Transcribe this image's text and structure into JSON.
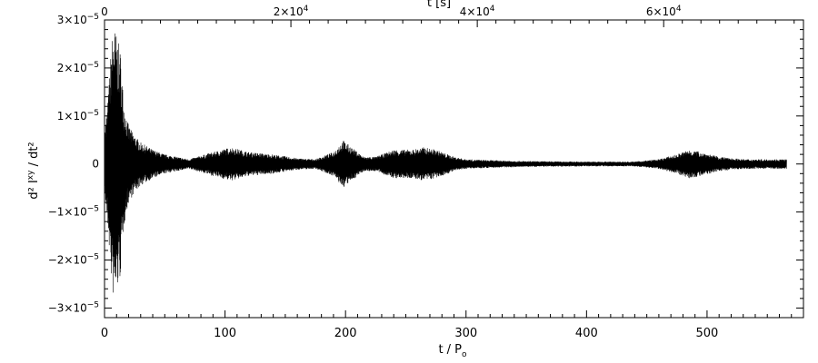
{
  "chart_data": {
    "type": "line",
    "series": [
      {
        "envelope": [
          [
            0,
            6e-06
          ],
          [
            3,
            1.4e-05
          ],
          [
            6,
            2.6e-05
          ],
          [
            8,
            2.9e-05
          ],
          [
            10,
            2.7e-05
          ],
          [
            13,
            2.4e-05
          ],
          [
            16,
            1.3e-05
          ],
          [
            20,
            8e-06
          ],
          [
            25,
            6e-06
          ],
          [
            30,
            4.5e-06
          ],
          [
            40,
            3e-06
          ],
          [
            50,
            2e-06
          ],
          [
            60,
            1.5e-06
          ],
          [
            70,
            1e-06
          ],
          [
            90,
            2.5e-06
          ],
          [
            105,
            3.5e-06
          ],
          [
            120,
            2.5e-06
          ],
          [
            140,
            2e-06
          ],
          [
            160,
            1.2e-06
          ],
          [
            175,
            1e-06
          ],
          [
            190,
            2.5e-06
          ],
          [
            198,
            5e-06
          ],
          [
            205,
            3.5e-06
          ],
          [
            215,
            1.5e-06
          ],
          [
            225,
            1.5e-06
          ],
          [
            240,
            3e-06
          ],
          [
            255,
            3e-06
          ],
          [
            265,
            3.5e-06
          ],
          [
            275,
            3e-06
          ],
          [
            290,
            1.5e-06
          ],
          [
            300,
            1e-06
          ],
          [
            320,
            8e-07
          ],
          [
            350,
            6e-07
          ],
          [
            400,
            5e-07
          ],
          [
            440,
            5e-07
          ],
          [
            460,
            1e-06
          ],
          [
            475,
            2e-06
          ],
          [
            485,
            3e-06
          ],
          [
            495,
            2.5e-06
          ],
          [
            510,
            1.5e-06
          ],
          [
            530,
            1e-06
          ],
          [
            550,
            1e-06
          ],
          [
            566,
            1e-06
          ]
        ]
      }
    ],
    "xlabel": "t / P",
    "xlabel_sub": "o",
    "ylabel": "d² I",
    "ylabel_sup": "xy",
    "ylabel_rest": " / dt²",
    "top_xlabel": "t [s]",
    "xlim": [
      0,
      580
    ],
    "ylim": [
      -3.2e-05,
      3e-05
    ],
    "x_ticks": [
      "0",
      "100",
      "200",
      "300",
      "400",
      "500"
    ],
    "x_tick_values": [
      0,
      100,
      200,
      300,
      400,
      500
    ],
    "top_ticks": [
      {
        "value": 0,
        "mant": "0",
        "exp": ""
      },
      {
        "value": 20000,
        "mant": "2×10",
        "exp": "4"
      },
      {
        "value": 40000,
        "mant": "4×10",
        "exp": "4"
      },
      {
        "value": 60000,
        "mant": "6×10",
        "exp": "4"
      }
    ],
    "top_x_max": 75000,
    "y_ticks": [
      {
        "value": 3e-05,
        "mant": "3×10",
        "exp": "−5"
      },
      {
        "value": 2e-05,
        "mant": "2×10",
        "exp": "−5"
      },
      {
        "value": 1e-05,
        "mant": "1×10",
        "exp": "−5"
      },
      {
        "value": 0,
        "mant": "0",
        "exp": ""
      },
      {
        "value": -1e-05,
        "mant": "−1×10",
        "exp": "−5"
      },
      {
        "value": -2e-05,
        "mant": "−2×10",
        "exp": "−5"
      },
      {
        "value": -3e-05,
        "mant": "−3×10",
        "exp": "−5"
      }
    ],
    "grid": false,
    "legend": "none"
  }
}
